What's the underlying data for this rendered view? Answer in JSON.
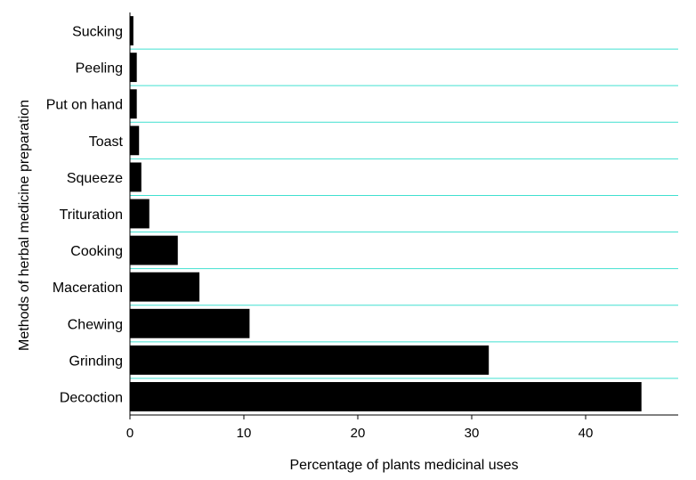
{
  "chart_data": {
    "type": "bar",
    "orientation": "horizontal",
    "categories": [
      "Sucking",
      "Peeling",
      "Put on hand",
      "Toast",
      "Squeeze",
      "Trituration",
      "Cooking",
      "Maceration",
      "Chewing",
      "Grinding",
      "Decoction"
    ],
    "values": [
      0.3,
      0.6,
      0.6,
      0.8,
      1.0,
      1.7,
      4.2,
      6.1,
      10.5,
      31.5,
      44.9
    ],
    "title": "",
    "xlabel": "Percentage of plants medicinal uses",
    "ylabel": "Methods of herbal medicine preparation",
    "xlim": [
      0,
      48
    ],
    "xticks": [
      0,
      10,
      20,
      30,
      40
    ],
    "grid": "horizontal gridlines between categories",
    "colors": {
      "bar": "#000000",
      "grid": "#40e0d0",
      "axis": "#000000"
    }
  }
}
